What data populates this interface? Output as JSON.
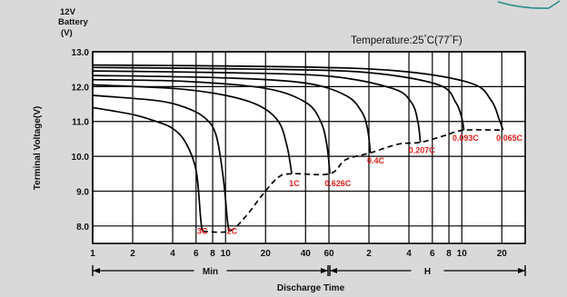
{
  "chart_data": {
    "type": "line",
    "battery_label": [
      "12V",
      "Battery",
      "(V)"
    ],
    "ylabel": "Terminal Voltage(V)",
    "xlabel": "Discharge Time",
    "temperature_prefix": "Temperature:25",
    "temperature_suffix": "C(77",
    "temperature_end": "F)",
    "degree_symbol": "°",
    "ylim": [
      7.5,
      13.0
    ],
    "y_ticks": [
      {
        "value": 13.0,
        "label": "13.0"
      },
      {
        "value": 12.0,
        "label": "12.0"
      },
      {
        "value": 11.0,
        "label": "11.0"
      },
      {
        "value": 10.0,
        "label": "10.0"
      },
      {
        "value": 9.0,
        "label": "9.0"
      },
      {
        "value": 8.0,
        "label": "8.0"
      }
    ],
    "x_scale": "log, minutes",
    "x_min_minutes": 1,
    "x_max_minutes": 1800,
    "x_ticks": [
      {
        "minutes": 1,
        "label": "1"
      },
      {
        "minutes": 2,
        "label": "2"
      },
      {
        "minutes": 4,
        "label": "4"
      },
      {
        "minutes": 6,
        "label": "6"
      },
      {
        "minutes": 8,
        "label": "8"
      },
      {
        "minutes": 10,
        "label": "10"
      },
      {
        "minutes": 20,
        "label": "20"
      },
      {
        "minutes": 40,
        "label": "40"
      },
      {
        "minutes": 60,
        "label": "60"
      },
      {
        "minutes": 120,
        "label": "2"
      },
      {
        "minutes": 240,
        "label": "4"
      },
      {
        "minutes": 360,
        "label": "6"
      },
      {
        "minutes": 480,
        "label": "8"
      },
      {
        "minutes": 600,
        "label": "10"
      },
      {
        "minutes": 1200,
        "label": "20"
      }
    ],
    "ranges": [
      {
        "label": "Min",
        "from_minutes": 1,
        "to_minutes": 60
      },
      {
        "label": "H",
        "from_minutes": 60,
        "to_minutes": 1800
      }
    ],
    "grid": true,
    "series": [
      {
        "name": "3C",
        "points": [
          [
            1,
            11.4
          ],
          [
            2,
            11.2
          ],
          [
            3,
            11.0
          ],
          [
            4,
            10.8
          ],
          [
            5,
            10.4
          ],
          [
            6,
            9.6
          ],
          [
            6.5,
            8.2
          ],
          [
            6.7,
            7.85
          ]
        ]
      },
      {
        "name": "2C",
        "points": [
          [
            1,
            11.75
          ],
          [
            3,
            11.6
          ],
          [
            5,
            11.4
          ],
          [
            7,
            11.1
          ],
          [
            8.5,
            10.6
          ],
          [
            9.6,
            9.4
          ],
          [
            10.3,
            8.2
          ],
          [
            10.6,
            7.85
          ]
        ]
      },
      {
        "name": "1C",
        "points": [
          [
            1,
            12.05
          ],
          [
            4,
            11.95
          ],
          [
            10,
            11.75
          ],
          [
            18,
            11.45
          ],
          [
            25,
            11.0
          ],
          [
            29,
            10.3
          ],
          [
            31.5,
            9.5
          ]
        ]
      },
      {
        "name": "0.626C",
        "points": [
          [
            1,
            12.2
          ],
          [
            5,
            12.15
          ],
          [
            20,
            11.95
          ],
          [
            40,
            11.55
          ],
          [
            52,
            11.0
          ],
          [
            58,
            10.3
          ],
          [
            61,
            9.5
          ]
        ]
      },
      {
        "name": "0.4C",
        "points": [
          [
            1,
            12.32
          ],
          [
            10,
            12.25
          ],
          [
            40,
            12.1
          ],
          [
            80,
            11.75
          ],
          [
            105,
            11.3
          ],
          [
            117,
            10.8
          ],
          [
            123,
            10.1
          ]
        ]
      },
      {
        "name": "0.207C",
        "points": [
          [
            1,
            12.45
          ],
          [
            10,
            12.4
          ],
          [
            60,
            12.3
          ],
          [
            180,
            11.95
          ],
          [
            250,
            11.55
          ],
          [
            280,
            11.0
          ],
          [
            293,
            10.4
          ]
        ]
      },
      {
        "name": "0.093C",
        "points": [
          [
            1,
            12.55
          ],
          [
            20,
            12.5
          ],
          [
            120,
            12.4
          ],
          [
            400,
            12.05
          ],
          [
            540,
            11.55
          ],
          [
            600,
            11.1
          ],
          [
            622,
            10.75
          ]
        ]
      },
      {
        "name": "0.065C",
        "points": [
          [
            1,
            12.62
          ],
          [
            30,
            12.57
          ],
          [
            200,
            12.45
          ],
          [
            700,
            12.1
          ],
          [
            1000,
            11.6
          ],
          [
            1150,
            11.05
          ],
          [
            1225,
            10.75
          ]
        ]
      }
    ],
    "cutoff_curve": [
      [
        6.7,
        7.85
      ],
      [
        10.6,
        7.85
      ],
      [
        14,
        8.25
      ],
      [
        19,
        8.9
      ],
      [
        25,
        9.4
      ],
      [
        31.5,
        9.5
      ],
      [
        61,
        9.5
      ],
      [
        80,
        9.9
      ],
      [
        123,
        10.1
      ],
      [
        200,
        10.35
      ],
      [
        293,
        10.4
      ],
      [
        450,
        10.6
      ],
      [
        622,
        10.75
      ],
      [
        1225,
        10.75
      ]
    ],
    "rate_labels": [
      {
        "text": "3C",
        "x": 6.7,
        "y": 7.88
      },
      {
        "text": "2C",
        "x": 11.2,
        "y": 7.88
      },
      {
        "text": "1C",
        "x": 33,
        "y": 9.25
      },
      {
        "text": "0.626C",
        "x": 70,
        "y": 9.25
      },
      {
        "text": "0.4C",
        "x": 135,
        "y": 9.9
      },
      {
        "text": "0.207C",
        "x": 300,
        "y": 10.2
      },
      {
        "text": "0.093C",
        "x": 640,
        "y": 10.55
      },
      {
        "text": "0.065C",
        "x": 1370,
        "y": 10.55
      }
    ]
  }
}
